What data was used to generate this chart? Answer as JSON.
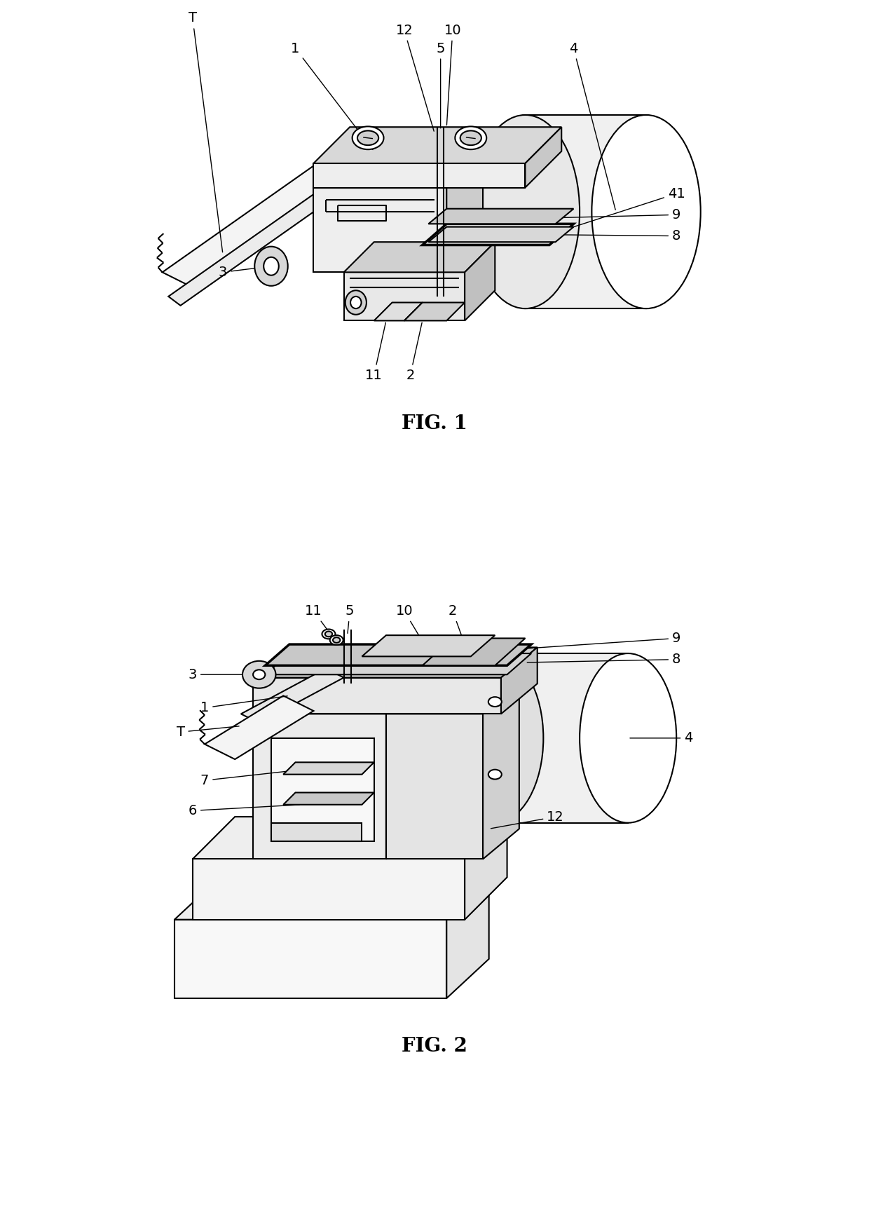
{
  "bg_color": "#ffffff",
  "line_color": "#000000",
  "lw": 1.5,
  "lw_thick": 2.5,
  "fig1_caption": "FIG. 1",
  "fig2_caption": "FIG. 2",
  "label_fs": 14
}
